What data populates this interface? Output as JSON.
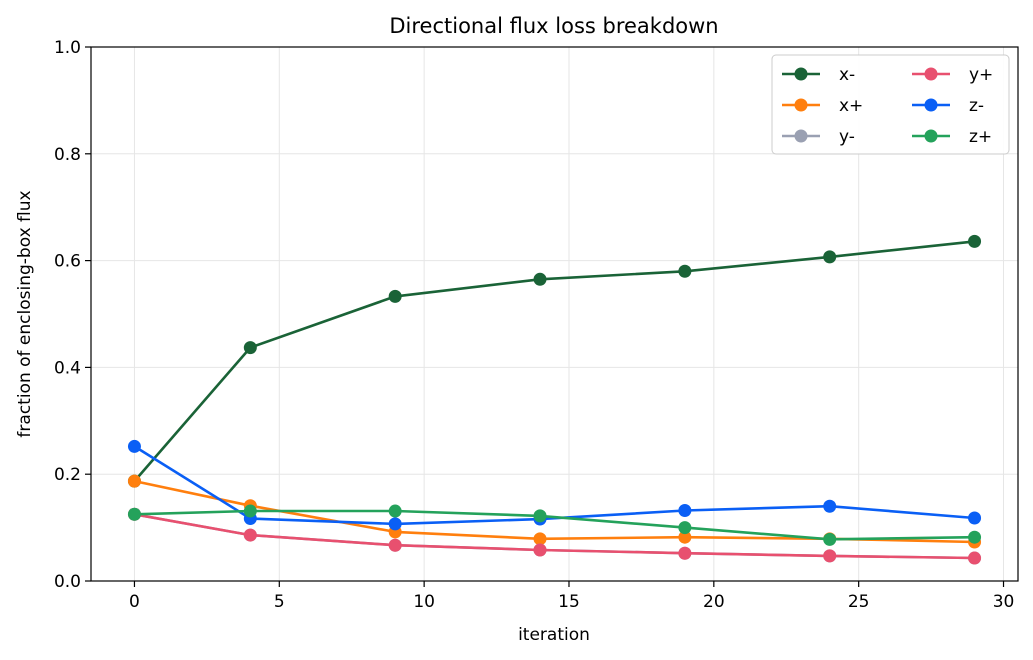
{
  "chart_data": {
    "type": "line",
    "title": "Directional flux loss breakdown",
    "xlabel": "iteration",
    "ylabel": "fraction of enclosing-box flux",
    "xlim": [
      -1.5,
      30.5
    ],
    "ylim": [
      0.0,
      1.0
    ],
    "xticks": [
      0,
      5,
      10,
      15,
      20,
      25,
      30
    ],
    "yticks": [
      0.0,
      0.2,
      0.4,
      0.6,
      0.8,
      1.0
    ],
    "xtick_labels": [
      "0",
      "5",
      "10",
      "15",
      "20",
      "25",
      "30"
    ],
    "ytick_labels": [
      "0.0",
      "0.2",
      "0.4",
      "0.6",
      "0.8",
      "1.0"
    ],
    "grid": true,
    "legend_position": "top-right",
    "legend_columns": 2,
    "x": [
      0,
      4,
      9,
      14,
      19,
      24,
      29
    ],
    "series": [
      {
        "name": "x-",
        "color": "#1a6337",
        "values": [
          0.187,
          0.437,
          0.533,
          0.565,
          0.58,
          0.607,
          0.636
        ]
      },
      {
        "name": "x+",
        "color": "#ff7f0e",
        "values": [
          0.187,
          0.141,
          0.092,
          0.079,
          0.082,
          0.079,
          0.073
        ]
      },
      {
        "name": "y-",
        "color": "#9aa0b2",
        "values": [
          0.125,
          0.086,
          0.067,
          0.058,
          0.052,
          0.047,
          0.043
        ]
      },
      {
        "name": "y+",
        "color": "#e8506f",
        "values": [
          0.125,
          0.086,
          0.067,
          0.058,
          0.052,
          0.047,
          0.043
        ]
      },
      {
        "name": "z-",
        "color": "#0a5ff5",
        "values": [
          0.252,
          0.117,
          0.107,
          0.116,
          0.132,
          0.14,
          0.118
        ]
      },
      {
        "name": "z+",
        "color": "#24a25b",
        "values": [
          0.125,
          0.131,
          0.131,
          0.122,
          0.1,
          0.078,
          0.082
        ]
      }
    ]
  }
}
